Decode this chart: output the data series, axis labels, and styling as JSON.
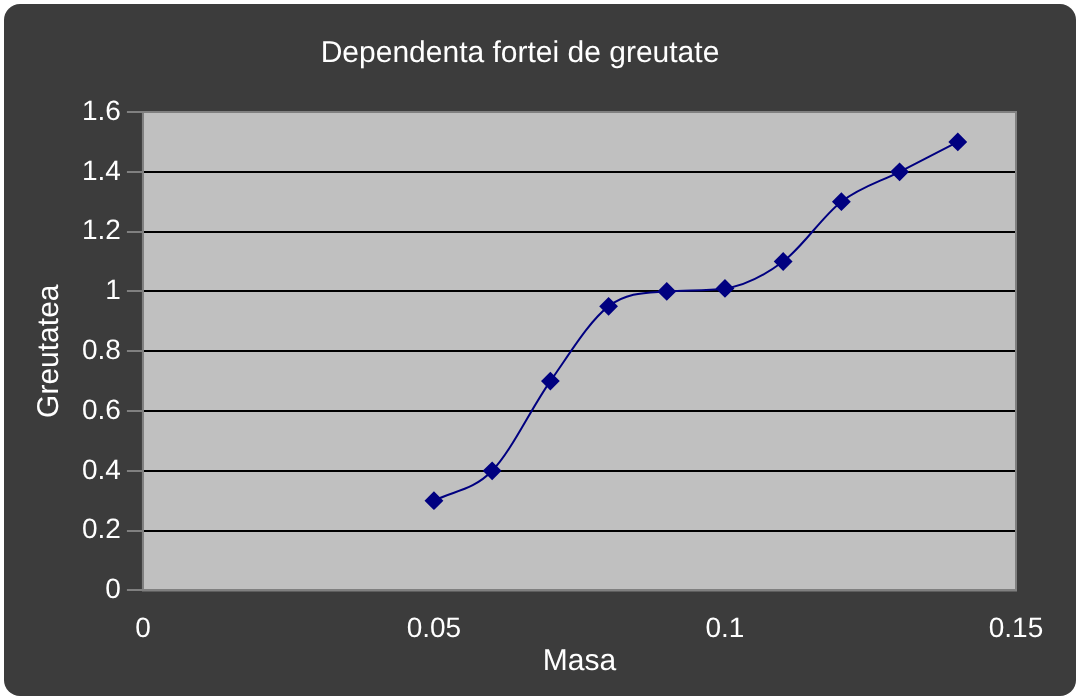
{
  "chart_data": {
    "type": "line",
    "title": "Dependenta fortei de greutate",
    "xlabel": "Masa",
    "ylabel": "Greutatea",
    "x": [
      0.05,
      0.06,
      0.07,
      0.08,
      0.09,
      0.1,
      0.11,
      0.12,
      0.13,
      0.14
    ],
    "series": [
      {
        "color": "#000080",
        "values": [
          0.3,
          0.4,
          0.7,
          0.95,
          1.0,
          1.01,
          1.1,
          1.3,
          1.4,
          1.5
        ]
      }
    ],
    "xlim": [
      0,
      0.15
    ],
    "xticks": [
      0,
      0.05,
      0.1,
      0.15
    ],
    "ylim": [
      0,
      1.6
    ],
    "yticks": [
      0,
      0.2,
      0.4,
      0.6,
      0.8,
      1,
      1.2,
      1.4,
      1.6
    ],
    "grid": "y",
    "legend": false,
    "marker": "diamond",
    "line_style": "solid"
  }
}
